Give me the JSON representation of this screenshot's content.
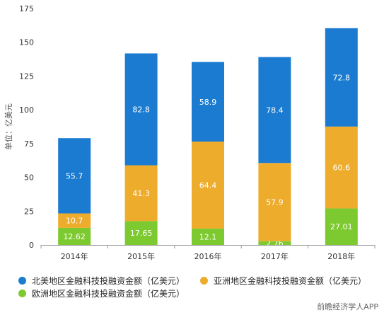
{
  "chart_data": {
    "type": "bar",
    "stacked": true,
    "ylabel": "单位：亿美元",
    "ylim": [
      0,
      175
    ],
    "yticks": [
      0,
      25,
      50,
      75,
      100,
      125,
      150,
      175
    ],
    "categories": [
      "2014年",
      "2015年",
      "2016年",
      "2017年",
      "2018年"
    ],
    "series": [
      {
        "name": "欧洲地区金融科技投融资金额（亿美元）",
        "color": "#7dc930",
        "values": [
          12.62,
          17.65,
          12.1,
          2.76,
          27.01
        ]
      },
      {
        "name": "亚洲地区金融科技投融资金额（亿美元）",
        "color": "#eeac2c",
        "values": [
          10.7,
          41.3,
          64.4,
          57.9,
          60.6
        ]
      },
      {
        "name": "北美地区金融科技投融资金额（亿美元）",
        "color": "#1a7bd0",
        "values": [
          55.7,
          82.8,
          58.9,
          78.4,
          72.8
        ]
      }
    ],
    "grid": false,
    "legend": "bottom"
  },
  "legend": {
    "north_america": "北美地区金融科技投融资金额（亿美元）",
    "asia": "亚洲地区金融科技投融资金额（亿美元）",
    "europe": "欧洲地区金融科技投融资金额（亿美元）"
  },
  "watermark": "前瞻经济学人APP"
}
